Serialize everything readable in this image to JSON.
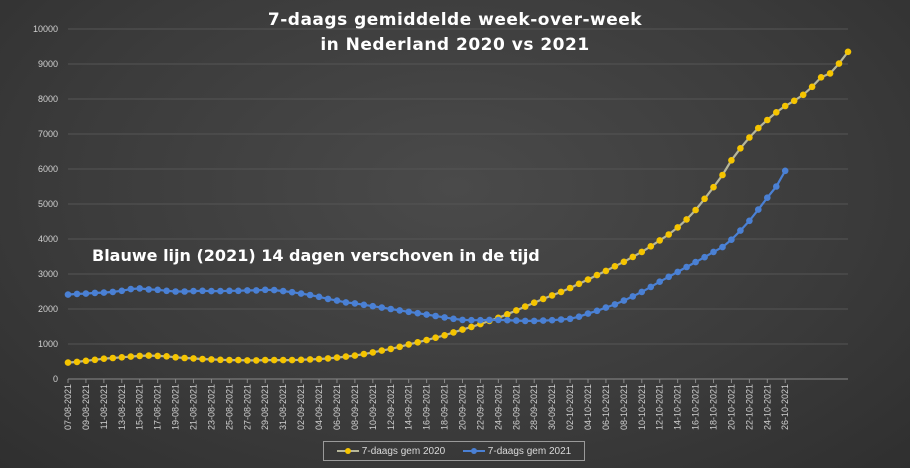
{
  "chart_data": {
    "type": "line",
    "title_line1": "7-daags gemiddelde week-over-week",
    "title_line2": "in Nederland 2020 vs 2021",
    "annotation": "Blauwe lijn (2021) 14 dagen verschoven in de tijd",
    "ylim": [
      0,
      10000
    ],
    "y_ticks": [
      0,
      1000,
      2000,
      3000,
      4000,
      5000,
      6000,
      7000,
      8000,
      9000,
      10000
    ],
    "x_start": "07-08-2021",
    "x_tick_labels": [
      "07-08-2021",
      "09-08-2021",
      "11-08-2021",
      "13-08-2021",
      "15-08-2021",
      "17-08-2021",
      "19-08-2021",
      "21-08-2021",
      "23-08-2021",
      "25-08-2021",
      "27-08-2021",
      "29-08-2021",
      "31-08-2021",
      "02-09-2021",
      "04-09-2021",
      "06-09-2021",
      "08-09-2021",
      "10-09-2021",
      "12-09-2021",
      "14-09-2021",
      "16-09-2021",
      "18-09-2021",
      "20-09-2021",
      "22-09-2021",
      "24-09-2021",
      "26-09-2021",
      "28-09-2021",
      "30-09-2021",
      "02-10-2021",
      "04-10-2021",
      "06-10-2021",
      "08-10-2021",
      "10-10-2021",
      "12-10-2021",
      "14-10-2021",
      "16-10-2021",
      "18-10-2021",
      "20-10-2021",
      "22-10-2021",
      "24-10-2021",
      "26-10-2021"
    ],
    "grid": true,
    "legend_position": "bottom",
    "series": [
      {
        "name": "7-daags gem 2020",
        "color": "#f5c400",
        "line_color": "#b7b79a",
        "values": [
          470,
          490,
          520,
          550,
          580,
          600,
          620,
          640,
          660,
          670,
          660,
          650,
          620,
          600,
          590,
          570,
          560,
          550,
          540,
          540,
          530,
          530,
          540,
          540,
          540,
          540,
          550,
          560,
          570,
          590,
          610,
          640,
          670,
          710,
          760,
          810,
          860,
          920,
          990,
          1050,
          1110,
          1180,
          1250,
          1330,
          1410,
          1490,
          1570,
          1660,
          1750,
          1850,
          1960,
          2070,
          2180,
          2290,
          2390,
          2490,
          2600,
          2720,
          2840,
          2970,
          3090,
          3220,
          3350,
          3490,
          3630,
          3790,
          3960,
          4130,
          4330,
          4560,
          4830,
          5150,
          5480,
          5830,
          6250,
          6590,
          6900,
          7170,
          7400,
          7620,
          7800,
          7950,
          8120,
          8350,
          8620,
          8730,
          9010,
          9350
        ]
      },
      {
        "name": "7-daags gem 2021",
        "color": "#4a80d4",
        "values": [
          2410,
          2430,
          2440,
          2460,
          2470,
          2490,
          2520,
          2570,
          2590,
          2560,
          2550,
          2520,
          2500,
          2500,
          2510,
          2520,
          2510,
          2510,
          2520,
          2520,
          2530,
          2530,
          2550,
          2540,
          2510,
          2480,
          2440,
          2400,
          2350,
          2290,
          2240,
          2190,
          2160,
          2120,
          2080,
          2040,
          2000,
          1960,
          1920,
          1880,
          1840,
          1800,
          1760,
          1720,
          1690,
          1680,
          1680,
          1690,
          1690,
          1680,
          1670,
          1660,
          1660,
          1670,
          1680,
          1700,
          1720,
          1780,
          1870,
          1950,
          2040,
          2130,
          2240,
          2360,
          2490,
          2630,
          2780,
          2920,
          3060,
          3200,
          3340,
          3480,
          3630,
          3770,
          3980,
          4240,
          4520,
          4840,
          5180,
          5500,
          5950
        ]
      }
    ]
  }
}
